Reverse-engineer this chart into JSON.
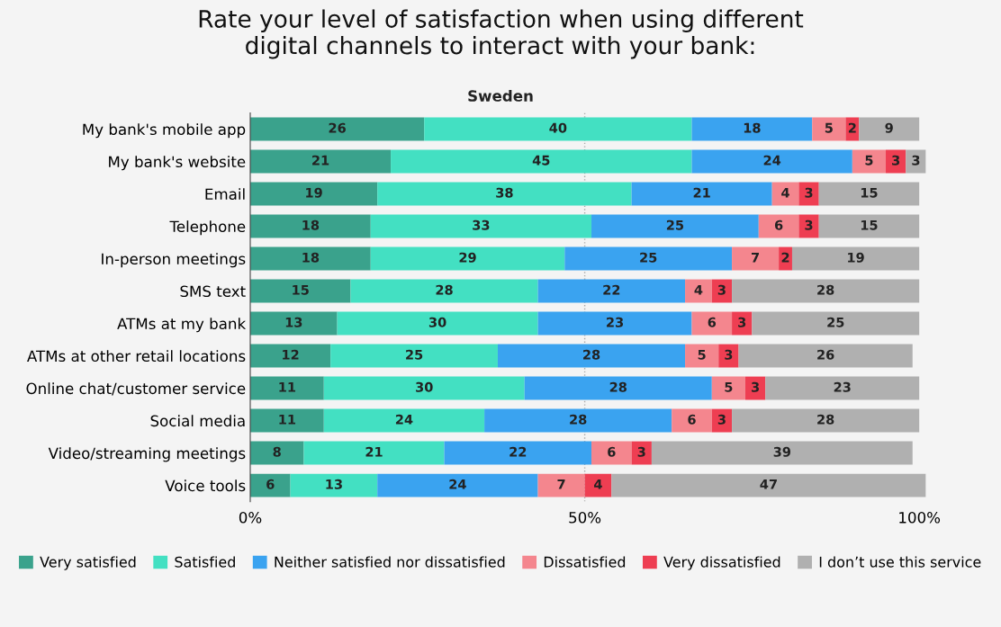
{
  "chart_data": {
    "type": "bar",
    "orientation": "horizontal",
    "stacked": true,
    "data_labels": true,
    "title": "Rate your level of satisfaction when using different\ndigital channels to interact with your bank:",
    "subtitle": "Sweden",
    "categories": [
      "My bank's mobile app",
      "My bank's website",
      "Email",
      "Telephone",
      "In-person meetings",
      "SMS text",
      "ATMs at my bank",
      "ATMs at other retail locations",
      "Online chat/customer service",
      "Social media",
      "Video/streaming meetings",
      "Voice tools"
    ],
    "series": [
      {
        "name": "Very satisfied",
        "color": "#3aa28c",
        "values": [
          26,
          21,
          19,
          18,
          18,
          15,
          13,
          12,
          11,
          11,
          8,
          6
        ]
      },
      {
        "name": "Satisfied",
        "color": "#43e0c2",
        "values": [
          40,
          45,
          38,
          33,
          29,
          28,
          30,
          25,
          30,
          24,
          21,
          13
        ]
      },
      {
        "name": "Neither satisfied nor dissatisfied",
        "color": "#3aa3f0",
        "values": [
          18,
          24,
          21,
          25,
          25,
          22,
          23,
          28,
          28,
          28,
          22,
          24
        ]
      },
      {
        "name": "Dissatisfied",
        "color": "#f4868e",
        "values": [
          5,
          5,
          4,
          6,
          7,
          4,
          6,
          5,
          5,
          6,
          6,
          7
        ]
      },
      {
        "name": "Very dissatisfied",
        "color": "#ee3e52",
        "values": [
          2,
          3,
          3,
          3,
          2,
          3,
          3,
          3,
          3,
          3,
          3,
          4
        ]
      },
      {
        "name": "I don’t use this service",
        "color": "#b0b0b0",
        "values": [
          9,
          3,
          15,
          15,
          19,
          28,
          25,
          26,
          23,
          28,
          39,
          47
        ]
      }
    ],
    "xlim": [
      0,
      101
    ],
    "xticks": [
      {
        "value": 0,
        "label": "0%"
      },
      {
        "value": 50,
        "label": "50%"
      },
      {
        "value": 100,
        "label": "100%"
      }
    ],
    "ref_lines": [
      {
        "axis": "x",
        "value": 50,
        "color": "#aaaaaa",
        "line_style": "dotted"
      }
    ],
    "grid": false,
    "legend": "bottom"
  }
}
